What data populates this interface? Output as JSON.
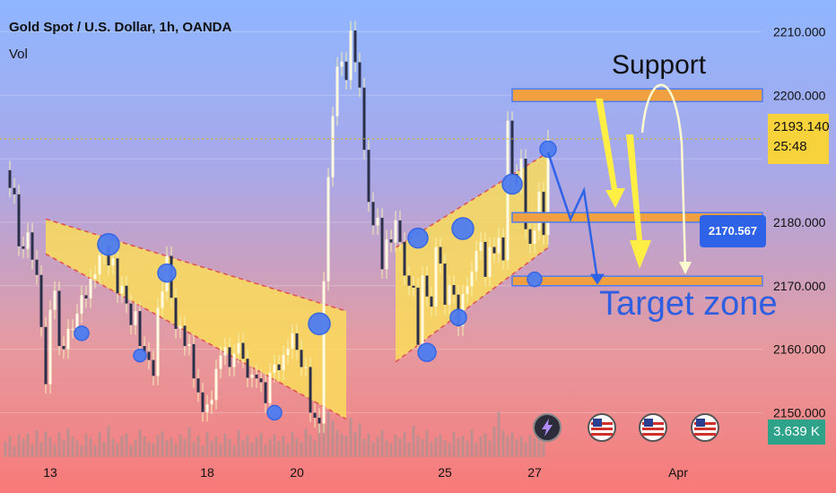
{
  "header": {
    "title": "Gold Spot / U.S. Dollar, 1h, OANDA",
    "indicator": "Vol"
  },
  "badges": {
    "last_price": "2193.140",
    "countdown": "25:48",
    "volume": "3.639 K",
    "target_price": "2170.567"
  },
  "annotations": {
    "support": "Support",
    "target_zone": "Target zone"
  },
  "colors": {
    "accent_yellow": "#f7d23a",
    "zone_orange": "#f0a040",
    "arrow_blue": "#2e63e8",
    "marker_blue": "#4d7df0",
    "volume_badge": "#2fa38a"
  },
  "chart_data": {
    "type": "candlestick",
    "symbol": "XAUUSD",
    "timeframe": "1h",
    "ylim": [
      2143,
      2215
    ],
    "y_ticks": [
      2150.0,
      2160.0,
      2170.0,
      2180.0,
      2190.0,
      2200.0,
      2210.0
    ],
    "y_tick_labels": [
      "2150.000",
      "2160.000",
      "2170.000",
      "2180.000",
      "2200.000",
      "2210.000"
    ],
    "x_tick_labels": [
      "13",
      "18",
      "20",
      "25",
      "27",
      "Apr"
    ],
    "x_tick_idx": [
      10,
      45,
      65,
      98,
      118,
      150
    ],
    "levels": {
      "support_zone": [
        2199.0,
        2201.0
      ],
      "mid_zone": [
        2180.0,
        2181.5
      ],
      "target_zone": [
        2170.0,
        2171.5
      ],
      "current_price": 2193.14
    },
    "channels": [
      {
        "name": "down channel",
        "start_idx": 9,
        "end_idx": 76,
        "upper": [
          2180.5,
          2166.0
        ],
        "lower": [
          2175.0,
          2149.0
        ]
      },
      {
        "name": "up channel",
        "start_idx": 87,
        "end_idx": 121,
        "upper": [
          2176.0,
          2191.0
        ],
        "lower": [
          2158.0,
          2176.0
        ]
      }
    ],
    "markers": [
      {
        "idx": 23,
        "price": 2176.5,
        "r": 12
      },
      {
        "idx": 17,
        "price": 2162.5,
        "r": 8
      },
      {
        "idx": 36,
        "price": 2172.0,
        "r": 10
      },
      {
        "idx": 30,
        "price": 2159.0,
        "r": 7
      },
      {
        "idx": 60,
        "price": 2150.0,
        "r": 8
      },
      {
        "idx": 70,
        "price": 2164.0,
        "r": 12
      },
      {
        "idx": 92,
        "price": 2177.5,
        "r": 11
      },
      {
        "idx": 94,
        "price": 2159.5,
        "r": 10
      },
      {
        "idx": 101,
        "price": 2165.0,
        "r": 9
      },
      {
        "idx": 102,
        "price": 2179.0,
        "r": 12
      },
      {
        "idx": 113,
        "price": 2186.0,
        "r": 11
      },
      {
        "idx": 118,
        "price": 2171.0,
        "r": 8
      },
      {
        "idx": 121,
        "price": 2191.5,
        "r": 9
      }
    ],
    "close": [
      2188.2,
      2185.4,
      2184.4,
      2176.2,
      2175.8,
      2178.4,
      2174.1,
      2171.7,
      2163.5,
      2154.5,
      2166.2,
      2169.2,
      2160.5,
      2160.0,
      2163.2,
      2163.2,
      2165.6,
      2168.5,
      2168.0,
      2171.1,
      2171.8,
      2174.8,
      2176.4,
      2173.2,
      2174.3,
      2168.8,
      2170.0,
      2167.2,
      2163.8,
      2166.0,
      2160.5,
      2159.6,
      2158.3,
      2155.8,
      2166.5,
      2169.1,
      2174.7,
      2168.1,
      2163.2,
      2163.7,
      2160.5,
      2160.8,
      2155.4,
      2153.2,
      2150.1,
      2151.3,
      2152.0,
      2156.9,
      2159.0,
      2160.3,
      2157.2,
      2159.3,
      2161.0,
      2158.5,
      2155.5,
      2156.0,
      2155.4,
      2154.8,
      2151.5,
      2156.3,
      2157.6,
      2156.7,
      2159.1,
      2160.1,
      2162.5,
      2159.9,
      2157.2,
      2157.2,
      2150.0,
      2149.2,
      2148.3,
      2170.7,
      2187.1,
      2196.7,
      2204.5,
      2205.3,
      2202.4,
      2210.2,
      2205.2,
      2201.2,
      2191.4,
      2183.2,
      2179.5,
      2180.7,
      2172.6,
      2177.3,
      2176.8,
      2180.3,
      2176.9,
      2171.6,
      2170.0,
      2169.7,
      2160.7,
      2171.6,
      2168.3,
      2166.7,
      2176.1,
      2173.5,
      2167.0,
      2170.1,
      2168.6,
      2163.6,
      2168.7,
      2169.9,
      2172.2,
      2175.5,
      2176.9,
      2171.4,
      2176.1,
      2175.1,
      2177.6,
      2174.0,
      2196.0,
      2187.6,
      2185.8,
      2190.0,
      2178.9,
      2176.6,
      2178.7,
      2184.8,
      2178.0,
      2193.1
    ],
    "volume_scale": [
      0.2,
      0.28,
      0.15,
      0.3,
      0.24,
      0.31,
      0.17,
      0.35,
      0.2,
      0.34,
      0.26,
      0.17,
      0.32,
      0.22,
      0.38,
      0.27,
      0.22,
      0.15,
      0.3,
      0.25,
      0.16,
      0.33,
      0.2,
      0.41,
      0.24,
      0.18,
      0.28,
      0.31,
      0.16,
      0.23,
      0.36,
      0.27,
      0.2,
      0.18,
      0.29,
      0.34,
      0.22,
      0.25,
      0.17,
      0.3,
      0.24,
      0.39,
      0.2,
      0.28,
      0.15,
      0.33,
      0.21,
      0.27,
      0.18,
      0.31,
      0.24,
      0.16,
      0.35,
      0.22,
      0.29,
      0.19,
      0.26,
      0.32,
      0.17,
      0.24,
      0.3,
      0.21,
      0.28,
      0.18,
      0.33,
      0.25,
      0.2,
      0.37,
      0.29,
      0.22,
      0.55,
      0.95,
      0.6,
      0.48,
      0.35,
      0.3,
      0.28,
      0.52,
      0.33,
      0.44,
      0.24,
      0.31,
      0.2,
      0.27,
      0.36,
      0.22,
      0.18,
      0.3,
      0.25,
      0.33,
      0.19,
      0.41,
      0.28,
      0.24,
      0.35,
      0.2,
      0.26,
      0.3,
      0.22,
      0.18,
      0.33,
      0.25,
      0.28,
      0.21,
      0.36,
      0.19,
      0.27,
      0.31,
      0.22,
      0.4,
      0.6,
      0.35,
      0.28,
      0.32,
      0.24,
      0.27,
      0.2,
      0.29,
      0.25,
      0.3,
      0.22
    ]
  }
}
